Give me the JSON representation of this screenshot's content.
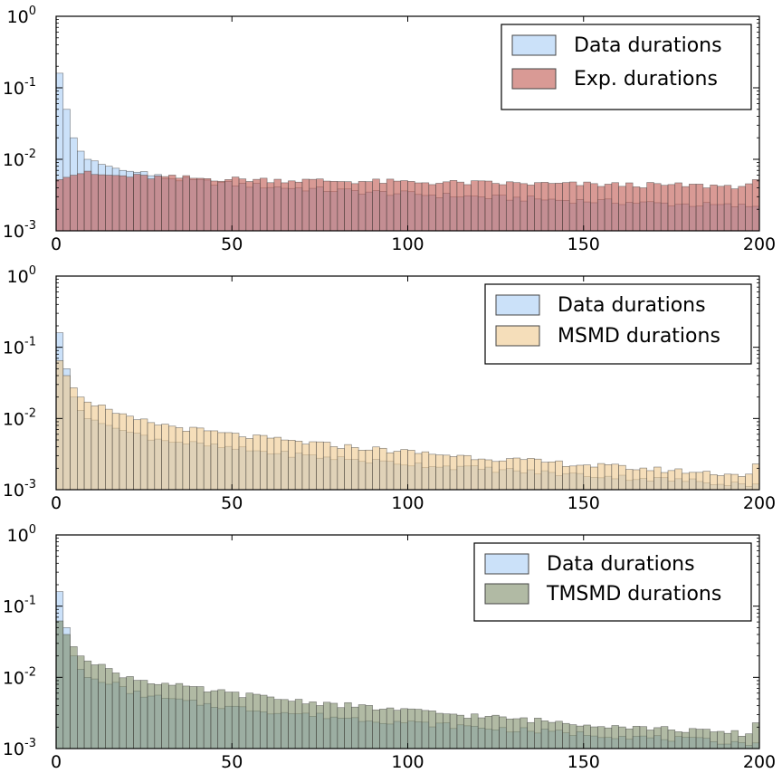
{
  "chart_data": [
    {
      "type": "bar",
      "title": "",
      "xlabel": "",
      "ylabel": "",
      "xlim": [
        0,
        200
      ],
      "ylim": [
        0.001,
        1
      ],
      "yscale": "log",
      "bin_width": 2,
      "xticks": [
        "0",
        "50",
        "100",
        "150",
        "200"
      ],
      "yticks": [
        {
          "base": "10",
          "exp": "0"
        },
        {
          "base": "10",
          "exp": "-1"
        },
        {
          "base": "10",
          "exp": "-2"
        },
        {
          "base": "10",
          "exp": "-3"
        }
      ],
      "legend_position": "top-right",
      "grid": false,
      "series": [
        {
          "name": "Data durations",
          "color": "#a8cdf5",
          "start": 0.16,
          "tail": [
            0.16,
            0.05,
            0.02,
            0.013,
            0.01,
            0.0095,
            0.0085,
            0.008,
            0.0075,
            0.007,
            0.0068,
            0.0066
          ],
          "end": 0.0022,
          "final": 0.0022
        },
        {
          "name": "Exp. durations",
          "color": "#c0564f",
          "start": 0.0052,
          "tail": [
            0.0052,
            0.0056,
            0.006,
            0.0063
          ],
          "end": 0.0042,
          "final": 0.0052
        }
      ]
    },
    {
      "type": "bar",
      "title": "",
      "xlabel": "",
      "ylabel": "",
      "xlim": [
        0,
        200
      ],
      "ylim": [
        0.001,
        1
      ],
      "yscale": "log",
      "bin_width": 2,
      "xticks": [
        "0",
        "50",
        "100",
        "150",
        "200"
      ],
      "yticks": [
        {
          "base": "10",
          "exp": "0"
        },
        {
          "base": "10",
          "exp": "-1"
        },
        {
          "base": "10",
          "exp": "-2"
        },
        {
          "base": "10",
          "exp": "-3"
        }
      ],
      "legend_position": "top-right",
      "grid": false,
      "series": [
        {
          "name": "Data durations",
          "color": "#a8cdf5",
          "start": 0.16,
          "tail": [
            0.16,
            0.05,
            0.02,
            0.013,
            0.01,
            0.0095,
            0.0085,
            0.008
          ],
          "end": 0.0012,
          "final": 0.0012
        },
        {
          "name": "MSMD durations",
          "color": "#eec88c",
          "start": 0.065,
          "tail": [
            0.065,
            0.04,
            0.027,
            0.02,
            0.017,
            0.015
          ],
          "end": 0.0016,
          "final": 0.0023
        }
      ]
    },
    {
      "type": "bar",
      "title": "",
      "xlabel": "",
      "ylabel": "",
      "xlim": [
        0,
        200
      ],
      "ylim": [
        0.001,
        1
      ],
      "yscale": "log",
      "bin_width": 2,
      "xticks": [
        "0",
        "50",
        "100",
        "150",
        "200"
      ],
      "yticks": [
        {
          "base": "10",
          "exp": "0"
        },
        {
          "base": "10",
          "exp": "-1"
        },
        {
          "base": "10",
          "exp": "-2"
        },
        {
          "base": "10",
          "exp": "-3"
        }
      ],
      "legend_position": "top-right",
      "grid": false,
      "series": [
        {
          "name": "Data durations",
          "color": "#a8cdf5",
          "start": 0.16,
          "tail": [
            0.16,
            0.05,
            0.02,
            0.013,
            0.01,
            0.0095,
            0.0085,
            0.008
          ],
          "end": 0.0012,
          "final": 0.0012
        },
        {
          "name": "TMSMD durations",
          "color": "#7d8c67",
          "start": 0.062,
          "tail": [
            0.062,
            0.04,
            0.027,
            0.02,
            0.017,
            0.015
          ],
          "end": 0.0016,
          "final": 0.0023
        }
      ]
    }
  ]
}
